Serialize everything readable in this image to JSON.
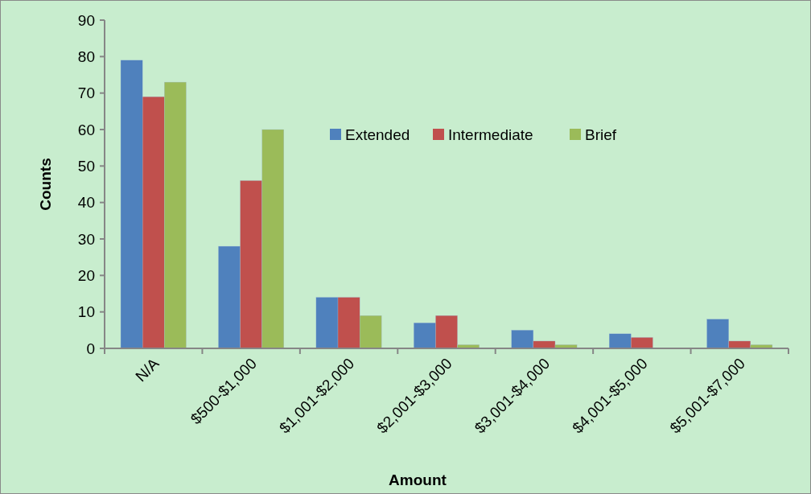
{
  "chart_data": {
    "type": "bar",
    "xlabel": "Amount",
    "ylabel": "Counts",
    "categories": [
      "N/A",
      "$500-$1,000",
      "$1,001-$2,000",
      "$2,001-$3,000",
      "$3,001-$4,000",
      "$4,001-$5,000",
      "$5,001-$7,000"
    ],
    "series": [
      {
        "name": "Extended",
        "color": "#4f81bd",
        "values": [
          79,
          28,
          14,
          7,
          5,
          4,
          8
        ]
      },
      {
        "name": "Intermediate",
        "color": "#c0504d",
        "values": [
          69,
          46,
          14,
          9,
          2,
          3,
          2
        ]
      },
      {
        "name": "Brief",
        "color": "#9bbb59",
        "values": [
          73,
          60,
          9,
          1,
          1,
          0,
          1
        ]
      }
    ],
    "ylim": [
      0,
      90
    ],
    "yticks": [
      0,
      10,
      20,
      30,
      40,
      50,
      60,
      70,
      80,
      90
    ],
    "grid": false,
    "legend": "top right"
  }
}
